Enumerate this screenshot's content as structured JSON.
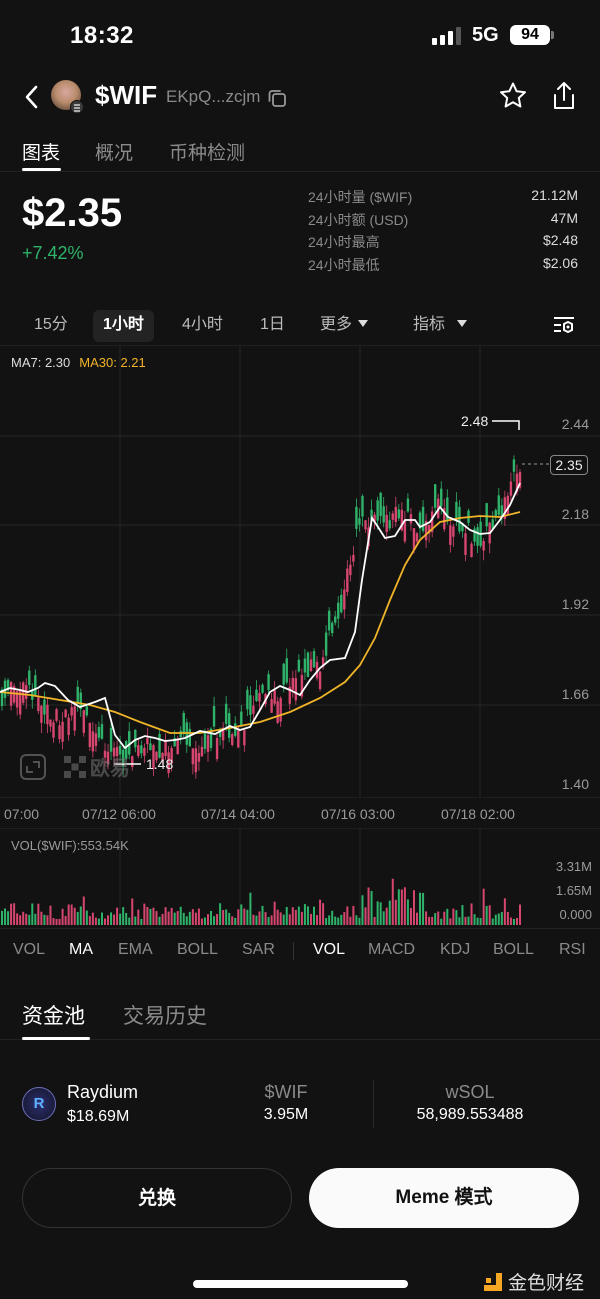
{
  "status_bar": {
    "time": "18:32",
    "network": "5G",
    "battery": "94"
  },
  "header": {
    "token_symbol": "$WIF",
    "token_address": "EKpQ...zcjm",
    "icons": [
      "back-chevron-icon",
      "token-avatar",
      "copy-icon",
      "star-icon",
      "share-icon"
    ]
  },
  "top_tabs": [
    {
      "label": "图表",
      "active": true
    },
    {
      "label": "概况",
      "active": false
    },
    {
      "label": "币种检测",
      "active": false
    }
  ],
  "price": {
    "current": "$2.35",
    "change_pct": "+7.42%",
    "change_color": "#2fb36a"
  },
  "stats": [
    {
      "label": "24小时量 ($WIF)",
      "value": "21.12M"
    },
    {
      "label": "24小时额 (USD)",
      "value": "47M"
    },
    {
      "label": "24小时最高",
      "value": "$2.48"
    },
    {
      "label": "24小时最低",
      "value": "$2.06"
    }
  ],
  "timeframes": [
    {
      "label": "15分",
      "active": false
    },
    {
      "label": "1小时",
      "active": true
    },
    {
      "label": "4小时",
      "active": false
    },
    {
      "label": "1日",
      "active": false
    },
    {
      "label": "更多",
      "active": false,
      "dropdown": true
    },
    {
      "label": "指标",
      "active": false,
      "dropdown": true
    }
  ],
  "ma_legend": {
    "ma7": "MA7: 2.30",
    "ma30": "MA30: 2.21",
    "ma7_color": "#ffffff",
    "ma30_color": "#f0b429"
  },
  "chart": {
    "current_price_tag": "2.35",
    "high_marker": "2.48",
    "low_marker": "1.48",
    "watermark": "欧易",
    "y_ticks": [
      "2.44",
      "2.18",
      "1.92",
      "1.66",
      "1.40"
    ],
    "x_ticks": [
      "07:00",
      "07/12 06:00",
      "07/14 04:00",
      "07/16 03:00",
      "07/18 02:00"
    ],
    "up_color": "#2fb36a",
    "down_color": "#d6466f"
  },
  "volume": {
    "title": "VOL($WIF):553.54K",
    "y_ticks": [
      "3.31M",
      "1.65M",
      "0.000"
    ]
  },
  "indicators": {
    "main": [
      {
        "label": "VOL",
        "active": false
      },
      {
        "label": "MA",
        "active": true
      },
      {
        "label": "EMA",
        "active": false
      },
      {
        "label": "BOLL",
        "active": false
      },
      {
        "label": "SAR",
        "active": false
      }
    ],
    "sub": [
      {
        "label": "VOL",
        "active": true
      },
      {
        "label": "MACD",
        "active": false
      },
      {
        "label": "KDJ",
        "active": false
      },
      {
        "label": "BOLL",
        "active": false
      },
      {
        "label": "RSI",
        "active": false
      }
    ]
  },
  "pool_tabs": [
    {
      "label": "资金池",
      "active": true
    },
    {
      "label": "交易历史",
      "active": false
    }
  ],
  "pool": {
    "name": "Raydium",
    "tvl": "$18.69M",
    "token_a": {
      "symbol": "$WIF",
      "amount": "3.95M"
    },
    "token_b": {
      "symbol": "wSOL",
      "amount": "58,989.553488"
    }
  },
  "buttons": {
    "swap": "兑换",
    "meme_mode": "Meme 模式"
  },
  "footer": {
    "brand": "金色财经"
  },
  "chart_data": {
    "type": "candlestick",
    "title": "$WIF 1小时",
    "x_ticks": [
      "07:00",
      "07/12 06:00",
      "07/14 04:00",
      "07/16 03:00",
      "07/18 02:00"
    ],
    "ylim": [
      1.4,
      2.5
    ],
    "y_ticks": [
      2.44,
      2.18,
      1.92,
      1.66,
      1.4
    ],
    "high": 2.48,
    "low": 1.48,
    "last": 2.35,
    "series": [
      {
        "name": "MA7",
        "last": 2.3
      },
      {
        "name": "MA30",
        "last": 2.21
      }
    ],
    "approx_close_path": [
      1.68,
      1.72,
      1.66,
      1.62,
      1.64,
      1.56,
      1.5,
      1.55,
      1.53,
      1.55,
      1.55,
      1.58,
      1.6,
      1.68,
      1.7,
      1.75,
      1.78,
      1.95,
      2.2,
      2.18,
      2.22,
      2.17,
      2.24,
      2.18,
      2.14,
      2.22,
      2.35
    ],
    "volume_ylim": [
      0,
      3.31
    ]
  }
}
